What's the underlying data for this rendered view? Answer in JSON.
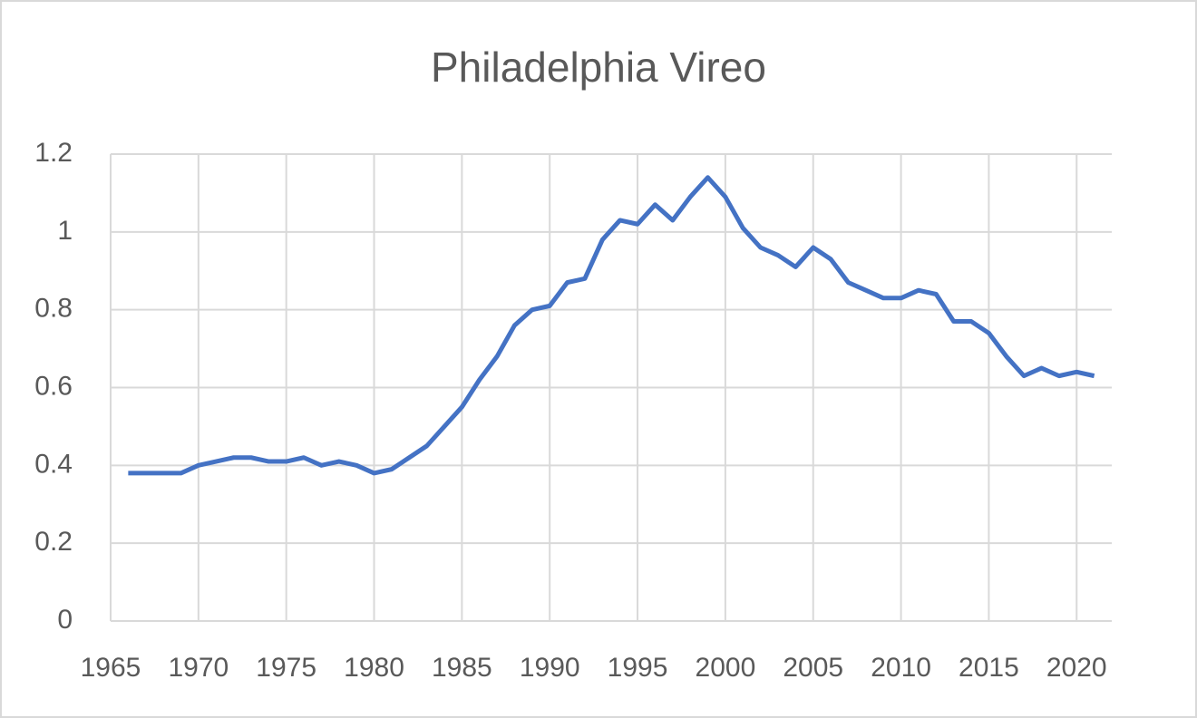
{
  "chart_data": {
    "type": "line",
    "title": "Philadelphia Vireo",
    "x": [
      1966,
      1967,
      1968,
      1969,
      1970,
      1971,
      1972,
      1973,
      1974,
      1975,
      1976,
      1977,
      1978,
      1979,
      1980,
      1981,
      1982,
      1983,
      1984,
      1985,
      1986,
      1987,
      1988,
      1989,
      1990,
      1991,
      1992,
      1993,
      1994,
      1995,
      1996,
      1997,
      1998,
      1999,
      2000,
      2001,
      2002,
      2003,
      2004,
      2005,
      2006,
      2007,
      2008,
      2009,
      2010,
      2011,
      2012,
      2013,
      2014,
      2015,
      2016,
      2017,
      2018,
      2019,
      2020,
      2021
    ],
    "series": [
      {
        "name": "Philadelphia Vireo",
        "color": "#4472c4",
        "values": [
          0.38,
          0.38,
          0.38,
          0.38,
          0.4,
          0.41,
          0.42,
          0.42,
          0.41,
          0.41,
          0.42,
          0.4,
          0.41,
          0.4,
          0.38,
          0.39,
          0.42,
          0.45,
          0.5,
          0.55,
          0.62,
          0.68,
          0.76,
          0.8,
          0.81,
          0.87,
          0.88,
          0.98,
          1.03,
          1.02,
          1.07,
          1.03,
          1.09,
          1.14,
          1.09,
          1.01,
          0.96,
          0.94,
          0.91,
          0.96,
          0.93,
          0.87,
          0.85,
          0.83,
          0.83,
          0.85,
          0.84,
          0.77,
          0.77,
          0.74,
          0.68,
          0.63,
          0.65,
          0.63,
          0.64,
          0.63
        ]
      }
    ],
    "xlim": [
      1965,
      2022
    ],
    "xticks": [
      1965,
      1970,
      1975,
      1980,
      1985,
      1990,
      1995,
      2000,
      2005,
      2010,
      2015,
      2020
    ],
    "ylim": [
      0,
      1.2
    ],
    "yticks": [
      0,
      0.2,
      0.4,
      0.6,
      0.8,
      1,
      1.2
    ],
    "grid": true
  }
}
